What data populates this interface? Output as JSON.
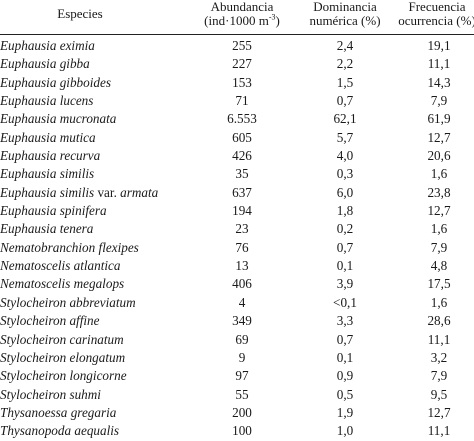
{
  "table": {
    "headers": {
      "species": "Especies",
      "abundance_line1": "Abundancia",
      "abundance_line2": "(ind·1000 m",
      "abundance_sup": "-3",
      "abundance_close": ")",
      "dominance_line1": "Dominancia",
      "dominance_line2": "numérica (%)",
      "frequency_line1": "Frecuencia",
      "frequency_line2": "ocurrencia (%)"
    },
    "rows": [
      {
        "species": "Euphausia eximia",
        "variety": "",
        "abundance": "255",
        "dominance": "2,4",
        "frequency": "19,1"
      },
      {
        "species": "Euphausia gibba",
        "variety": "",
        "abundance": "227",
        "dominance": "2,2",
        "frequency": "11,1"
      },
      {
        "species": "Euphausia gibboides",
        "variety": "",
        "abundance": "153",
        "dominance": "1,5",
        "frequency": "14,3"
      },
      {
        "species": "Euphausia lucens",
        "variety": "",
        "abundance": "71",
        "dominance": "0,7",
        "frequency": "7,9"
      },
      {
        "species": "Euphausia mucronata",
        "variety": "",
        "abundance": "6.553",
        "dominance": "62,1",
        "frequency": "61,9"
      },
      {
        "species": "Euphausia mutica",
        "variety": "",
        "abundance": "605",
        "dominance": "5,7",
        "frequency": "12,7"
      },
      {
        "species": "Euphausia recurva",
        "variety": "",
        "abundance": "426",
        "dominance": "4,0",
        "frequency": "20,6"
      },
      {
        "species": "Euphausia similis",
        "variety": "",
        "abundance": "35",
        "dominance": "0,3",
        "frequency": "1,6"
      },
      {
        "species": "Euphausia similis",
        "variety": " var. ",
        "variety_name": "armata",
        "abundance": "637",
        "dominance": "6,0",
        "frequency": "23,8"
      },
      {
        "species": "Euphausia spinifera",
        "variety": "",
        "abundance": "194",
        "dominance": "1,8",
        "frequency": "12,7"
      },
      {
        "species": "Euphausia tenera",
        "variety": "",
        "abundance": "23",
        "dominance": "0,2",
        "frequency": "1,6"
      },
      {
        "species": "Nematobranchion flexipes",
        "variety": "",
        "abundance": "76",
        "dominance": "0,7",
        "frequency": "7,9"
      },
      {
        "species": "Nematoscelis atlantica",
        "variety": "",
        "abundance": "13",
        "dominance": "0,1",
        "frequency": "4,8"
      },
      {
        "species": "Nematoscelis megalops",
        "variety": "",
        "abundance": "406",
        "dominance": "3,9",
        "frequency": "17,5"
      },
      {
        "species": "Stylocheiron abbreviatum",
        "variety": "",
        "abundance": "4",
        "dominance": "<0,1",
        "frequency": "1,6"
      },
      {
        "species": "Stylocheiron affine",
        "variety": "",
        "abundance": "349",
        "dominance": "3,3",
        "frequency": "28,6"
      },
      {
        "species": "Stylocheiron carinatum",
        "variety": "",
        "abundance": "69",
        "dominance": "0,7",
        "frequency": "11,1"
      },
      {
        "species": "Stylocheiron elongatum",
        "variety": "",
        "abundance": "9",
        "dominance": "0,1",
        "frequency": "3,2"
      },
      {
        "species": "Stylocheiron longicorne",
        "variety": "",
        "abundance": "97",
        "dominance": "0,9",
        "frequency": "7,9"
      },
      {
        "species": "Stylocheiron suhmi",
        "variety": "",
        "abundance": "55",
        "dominance": "0,5",
        "frequency": "9,5"
      },
      {
        "species": "Thysanoessa gregaria",
        "variety": "",
        "abundance": "200",
        "dominance": "1,9",
        "frequency": "12,7"
      },
      {
        "species": "Thysanopoda aequalis",
        "variety": "",
        "abundance": "100",
        "dominance": "1,0",
        "frequency": "11,1"
      }
    ]
  }
}
